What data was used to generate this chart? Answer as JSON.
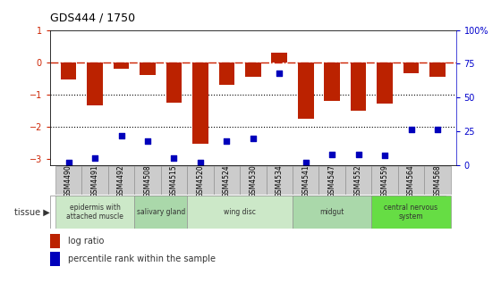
{
  "title": "GDS444 / 1750",
  "samples": [
    "GSM4490",
    "GSM4491",
    "GSM4492",
    "GSM4508",
    "GSM4515",
    "GSM4520",
    "GSM4524",
    "GSM4530",
    "GSM4534",
    "GSM4541",
    "GSM4547",
    "GSM4552",
    "GSM4559",
    "GSM4564",
    "GSM4568"
  ],
  "log_ratio": [
    -0.55,
    -1.35,
    -0.2,
    -0.4,
    -1.25,
    -2.55,
    -0.7,
    -0.45,
    0.3,
    -1.75,
    -1.2,
    -1.5,
    -1.3,
    -0.35,
    -0.45
  ],
  "percentile": [
    2,
    5,
    22,
    18,
    5,
    2,
    18,
    20,
    68,
    2,
    8,
    8,
    7,
    26,
    26
  ],
  "tissue_groups": [
    {
      "label": "epidermis with\nattached muscle",
      "start": 0,
      "end": 2,
      "color": "#cce8c8"
    },
    {
      "label": "salivary gland",
      "start": 3,
      "end": 4,
      "color": "#aad8aa"
    },
    {
      "label": "wing disc",
      "start": 5,
      "end": 8,
      "color": "#cce8c8"
    },
    {
      "label": "midgut",
      "start": 9,
      "end": 11,
      "color": "#aad8aa"
    },
    {
      "label": "central nervous\nsystem",
      "start": 12,
      "end": 14,
      "color": "#66dd44"
    }
  ],
  "bar_color": "#bb2200",
  "dot_color": "#0000bb",
  "ylim_left": [
    -3.2,
    1.0
  ],
  "ylim_right": [
    0,
    100
  ],
  "right_ticks": [
    0,
    25,
    50,
    75,
    100
  ],
  "right_labels": [
    "0",
    "25",
    "50",
    "75",
    "100%"
  ],
  "left_ticks": [
    -3,
    -2,
    -1,
    0,
    1
  ],
  "hline_zero_color": "#cc2200",
  "hline_dotted_color": "#000000",
  "background_color": "#ffffff",
  "legend_log_ratio": "log ratio",
  "legend_percentile": "percentile rank within the sample",
  "sample_box_color": "#cccccc",
  "tissue_label": "tissue",
  "figwidth": 5.6,
  "figheight": 3.36,
  "dpi": 100
}
